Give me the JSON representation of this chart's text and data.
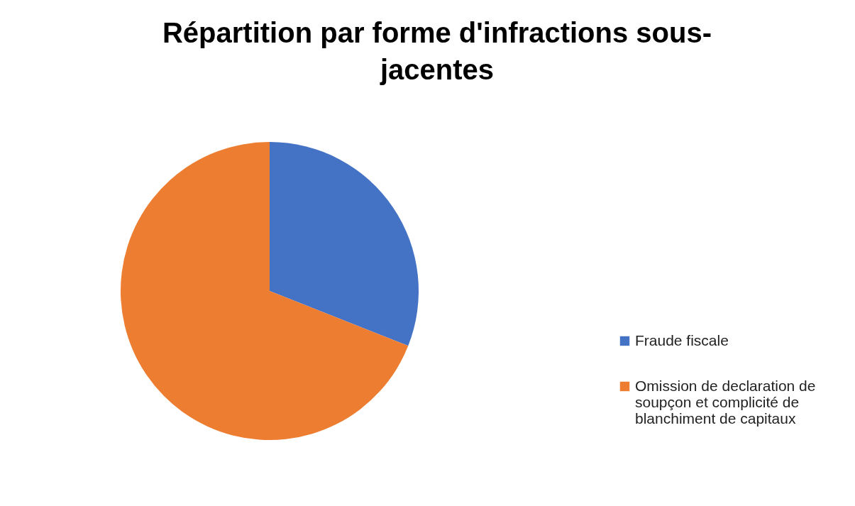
{
  "chart_data": {
    "type": "pie",
    "title": "Répartition par forme d'infractions sous-jacentes",
    "categories": [
      "Fraude fiscale",
      "Omission de declaration de soupçon et complicité de blanchiment de capitaux"
    ],
    "values": [
      31,
      69
    ],
    "colors": [
      "#4472c4",
      "#ed7d31"
    ],
    "legend": "right"
  }
}
